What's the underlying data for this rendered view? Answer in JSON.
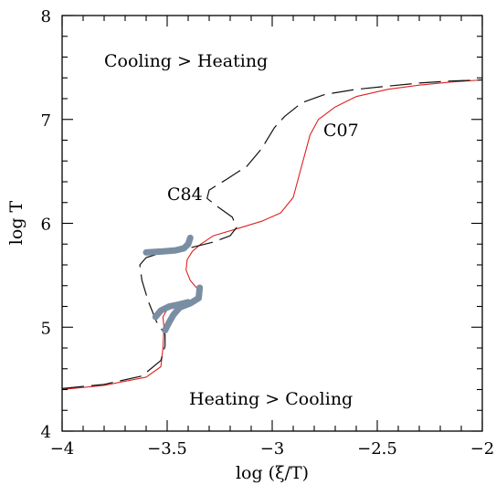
{
  "chart_data": {
    "type": "line",
    "xlabel": "log (ξ/T)",
    "ylabel": "log T",
    "xlim": [
      -4,
      -2
    ],
    "ylim": [
      4,
      8
    ],
    "x_ticks": [
      -4,
      -3.5,
      -3,
      -2.5,
      -2
    ],
    "x_tick_labels": [
      "−4",
      "−3.5",
      "−3",
      "−2.5",
      "−2"
    ],
    "y_ticks": [
      4,
      5,
      6,
      7,
      8
    ],
    "y_tick_labels": [
      "4",
      "5",
      "6",
      "7",
      "8"
    ],
    "annotations": [
      {
        "text": "Cooling > Heating",
        "x": -3.4,
        "y": 7.55
      },
      {
        "text": "Heating > Cooling",
        "x": -3.03,
        "y": 4.28
      },
      {
        "text": "C84",
        "x": -3.5,
        "y": 6.24
      },
      {
        "text": "C07",
        "x": -2.7,
        "y": 7.06
      }
    ],
    "series": [
      {
        "name": "C07",
        "color": "#e02020",
        "style": "solid",
        "points": [
          [
            -4.0,
            4.4
          ],
          [
            -3.8,
            4.44
          ],
          [
            -3.6,
            4.52
          ],
          [
            -3.53,
            4.62
          ],
          [
            -3.52,
            4.8
          ],
          [
            -3.515,
            5.0
          ],
          [
            -3.52,
            5.1
          ],
          [
            -3.5,
            5.17
          ],
          [
            -3.44,
            5.2
          ],
          [
            -3.38,
            5.25
          ],
          [
            -3.35,
            5.32
          ],
          [
            -3.36,
            5.38
          ],
          [
            -3.39,
            5.45
          ],
          [
            -3.41,
            5.55
          ],
          [
            -3.405,
            5.65
          ],
          [
            -3.38,
            5.73
          ],
          [
            -3.34,
            5.8
          ],
          [
            -3.28,
            5.88
          ],
          [
            -3.18,
            5.94
          ],
          [
            -3.05,
            6.02
          ],
          [
            -2.96,
            6.1
          ],
          [
            -2.9,
            6.25
          ],
          [
            -2.86,
            6.55
          ],
          [
            -2.82,
            6.85
          ],
          [
            -2.78,
            7.0
          ],
          [
            -2.7,
            7.12
          ],
          [
            -2.6,
            7.22
          ],
          [
            -2.45,
            7.29
          ],
          [
            -2.3,
            7.33
          ],
          [
            -2.15,
            7.36
          ],
          [
            -2.0,
            7.38
          ]
        ]
      },
      {
        "name": "C84",
        "color": "#111111",
        "style": "dashed",
        "points": [
          [
            -4.0,
            4.41
          ],
          [
            -3.8,
            4.45
          ],
          [
            -3.62,
            4.53
          ],
          [
            -3.53,
            4.68
          ],
          [
            -3.51,
            4.82
          ],
          [
            -3.51,
            4.93
          ],
          [
            -3.55,
            5.05
          ],
          [
            -3.59,
            5.25
          ],
          [
            -3.62,
            5.45
          ],
          [
            -3.63,
            5.6
          ],
          [
            -3.6,
            5.67
          ],
          [
            -3.52,
            5.72
          ],
          [
            -3.4,
            5.76
          ],
          [
            -3.28,
            5.82
          ],
          [
            -3.2,
            5.88
          ],
          [
            -3.17,
            5.96
          ],
          [
            -3.19,
            6.06
          ],
          [
            -3.26,
            6.16
          ],
          [
            -3.31,
            6.24
          ],
          [
            -3.3,
            6.32
          ],
          [
            -3.22,
            6.42
          ],
          [
            -3.12,
            6.55
          ],
          [
            -3.05,
            6.72
          ],
          [
            -2.99,
            6.92
          ],
          [
            -2.94,
            7.03
          ],
          [
            -2.86,
            7.16
          ],
          [
            -2.75,
            7.24
          ],
          [
            -2.6,
            7.29
          ],
          [
            -2.45,
            7.32
          ],
          [
            -2.3,
            7.35
          ],
          [
            -2.15,
            7.37
          ],
          [
            -2.0,
            7.38
          ]
        ]
      },
      {
        "name": "",
        "color": "#7a8ea3",
        "style": "thick",
        "points": [
          [
            -3.51,
            4.97
          ],
          [
            -3.49,
            5.05
          ],
          [
            -3.47,
            5.12
          ],
          [
            -3.44,
            5.19
          ],
          [
            -3.39,
            5.23
          ],
          [
            -3.35,
            5.28
          ],
          [
            -3.345,
            5.38
          ]
        ]
      },
      {
        "name": "",
        "color": "#7a8ea3",
        "style": "thick",
        "points": [
          [
            -3.555,
            5.1
          ],
          [
            -3.53,
            5.16
          ],
          [
            -3.49,
            5.2
          ],
          [
            -3.44,
            5.22
          ],
          [
            -3.4,
            5.24
          ]
        ]
      },
      {
        "name": "",
        "color": "#7a8ea3",
        "style": "thick",
        "points": [
          [
            -3.6,
            5.72
          ],
          [
            -3.52,
            5.73
          ],
          [
            -3.46,
            5.74
          ],
          [
            -3.42,
            5.76
          ],
          [
            -3.4,
            5.8
          ],
          [
            -3.39,
            5.86
          ]
        ]
      }
    ]
  }
}
